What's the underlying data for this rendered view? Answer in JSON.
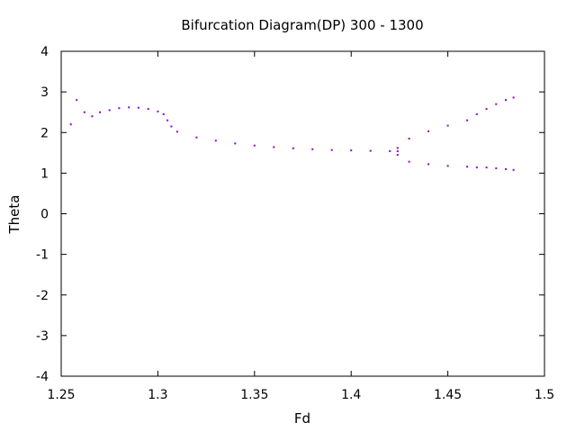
{
  "chart_data": {
    "type": "scatter",
    "title": "Bifurcation Diagram(DP) 300 - 1300",
    "xlabel": "Fd",
    "ylabel": "Theta",
    "xlim": [
      1.25,
      1.5
    ],
    "ylim": [
      -4,
      4
    ],
    "x_ticks": [
      "1.25",
      "1.3",
      "1.35",
      "1.4",
      "1.45",
      "1.5"
    ],
    "y_ticks": [
      "-4",
      "-3",
      "-2",
      "-1",
      "0",
      "1",
      "2",
      "3",
      "4"
    ],
    "point_color": "#9400d3",
    "grid": false,
    "legend": false,
    "series": [
      {
        "x": [
          1.255,
          1.258,
          1.262,
          1.266,
          1.27,
          1.275,
          1.28,
          1.285,
          1.29,
          1.295,
          1.3,
          1.303,
          1.305,
          1.307,
          1.31,
          1.32,
          1.33,
          1.34,
          1.35,
          1.36,
          1.37,
          1.38,
          1.39,
          1.4,
          1.41,
          1.42,
          1.424
        ],
        "y": [
          2.2,
          2.8,
          2.5,
          2.4,
          2.5,
          2.55,
          2.6,
          2.62,
          2.61,
          2.58,
          2.52,
          2.45,
          2.3,
          2.15,
          2.02,
          1.88,
          1.8,
          1.73,
          1.68,
          1.64,
          1.61,
          1.59,
          1.57,
          1.56,
          1.55,
          1.54,
          1.54
        ]
      },
      {
        "x": [
          1.424,
          1.43,
          1.44,
          1.45,
          1.46,
          1.465,
          1.47,
          1.475,
          1.48,
          1.484
        ],
        "y": [
          1.62,
          1.85,
          2.03,
          2.17,
          2.3,
          2.45,
          2.58,
          2.7,
          2.8,
          2.86
        ]
      },
      {
        "x": [
          1.424,
          1.43,
          1.44,
          1.45,
          1.46,
          1.465,
          1.47,
          1.475,
          1.48,
          1.484
        ],
        "y": [
          1.45,
          1.28,
          1.22,
          1.18,
          1.16,
          1.14,
          1.14,
          1.12,
          1.1,
          1.08
        ]
      }
    ]
  }
}
